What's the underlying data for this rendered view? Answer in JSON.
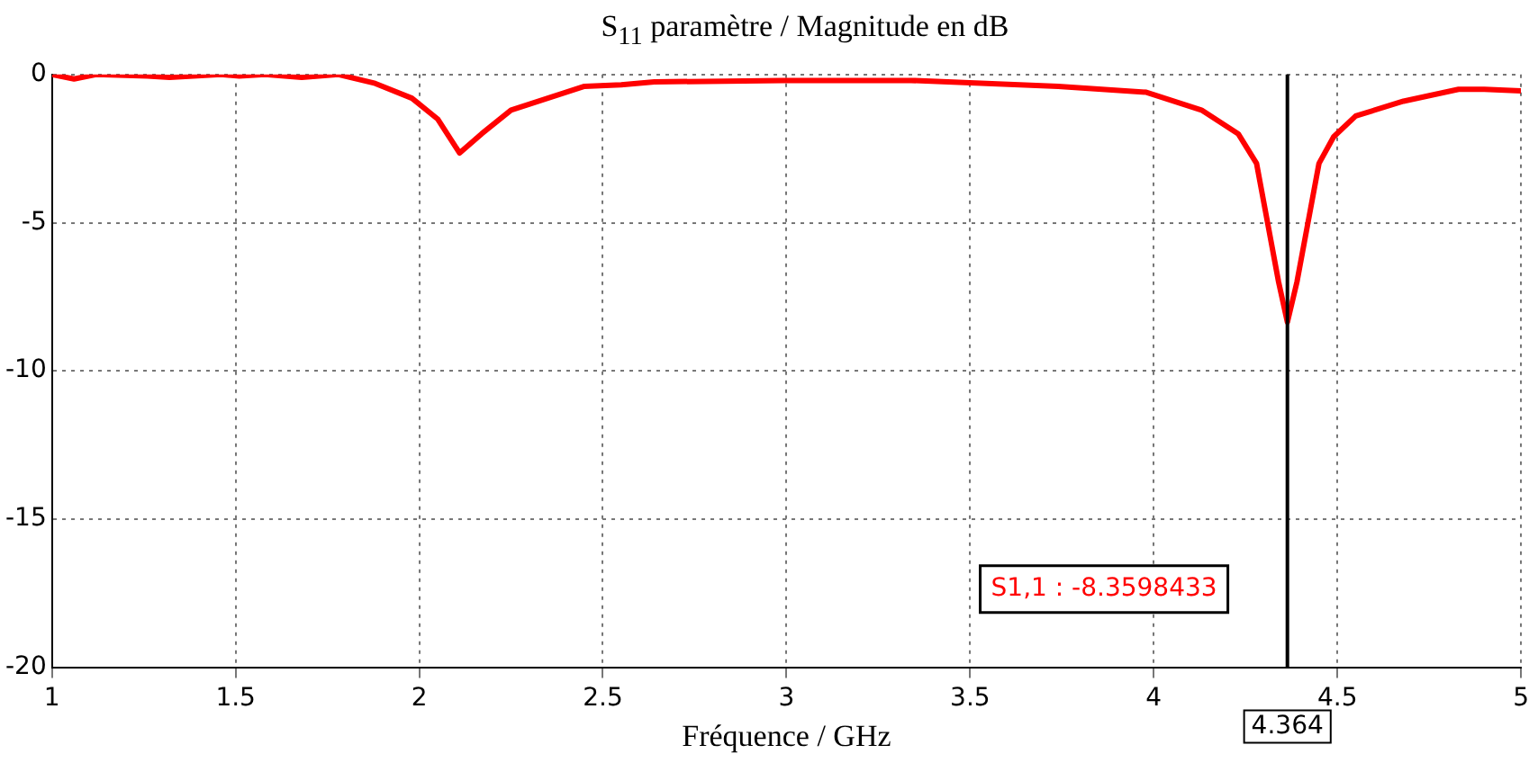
{
  "chart_data": {
    "type": "line",
    "title": "S$_{11}$ paramètre / Magnitude en dB",
    "xlabel": "Fréquence / GHz",
    "x": [
      1.0,
      1.06,
      1.12,
      1.26,
      1.32,
      1.46,
      1.51,
      1.58,
      1.68,
      1.78,
      1.88,
      1.98,
      2.05,
      2.11,
      2.17,
      2.25,
      2.35,
      2.45,
      2.55,
      2.64,
      2.99,
      3.34,
      3.74,
      3.98,
      4.13,
      4.23,
      4.28,
      4.31,
      4.34,
      4.364,
      4.39,
      4.42,
      4.45,
      4.49,
      4.55,
      4.68,
      4.83,
      4.9,
      5.0
    ],
    "series": [
      {
        "color": "#ff0000",
        "values": [
          0,
          -0.15,
          0,
          -0.05,
          -0.1,
          0,
          -0.05,
          0,
          -0.1,
          0,
          -0.3,
          -0.8,
          -1.5,
          -2.65,
          -2.0,
          -1.2,
          -0.8,
          -0.4,
          -0.35,
          -0.25,
          -0.2,
          -0.2,
          -0.4,
          -0.6,
          -1.2,
          -2.0,
          -3.0,
          -5.0,
          -7.0,
          -8.36,
          -7.0,
          -5.0,
          -3.0,
          -2.1,
          -1.4,
          -0.9,
          -0.5,
          -0.5,
          -0.55
        ]
      }
    ],
    "xlim": [
      1,
      5
    ],
    "xticks": [
      1,
      1.5,
      2,
      2.5,
      3,
      3.5,
      4,
      4.5,
      5
    ],
    "ylim": [
      -20,
      0
    ],
    "yticks": [
      -20,
      -15,
      -10,
      -5,
      0
    ],
    "grid": true,
    "legend": false,
    "marker": "none",
    "line_style": "solid",
    "ref_lines": [
      {
        "axis": "x",
        "value": 4.364,
        "label": "4.364",
        "color": "#000000"
      }
    ],
    "annotations": [
      "S1,1 : -8.3598433"
    ]
  }
}
